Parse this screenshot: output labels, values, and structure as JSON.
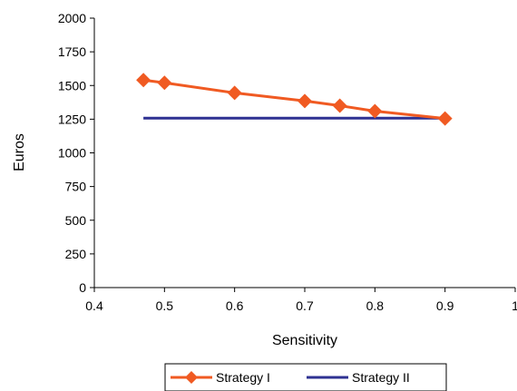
{
  "chart_data": {
    "type": "line",
    "title": "",
    "xlabel": "Sensitivity",
    "ylabel": "Euros",
    "xlim": [
      0.4,
      1
    ],
    "ylim": [
      0,
      2000
    ],
    "x_ticks": [
      "0.4",
      "0.5",
      "0.6",
      "0.7",
      "0.8",
      "0.9",
      "1"
    ],
    "y_ticks": [
      "0",
      "250",
      "500",
      "750",
      "1000",
      "1250",
      "1500",
      "1750",
      "2000"
    ],
    "grid": false,
    "legend_position": "bottom",
    "series": [
      {
        "name": "Strategy I",
        "color": "#F05A22",
        "marker": "diamond",
        "x": [
          0.47,
          0.5,
          0.6,
          0.7,
          0.75,
          0.8,
          0.9
        ],
        "y": [
          1540,
          1520,
          1445,
          1385,
          1350,
          1310,
          1255
        ]
      },
      {
        "name": "Strategy II",
        "color": "#2E3192",
        "marker": "none",
        "x": [
          0.47,
          0.9
        ],
        "y": [
          1258,
          1258
        ]
      }
    ]
  }
}
